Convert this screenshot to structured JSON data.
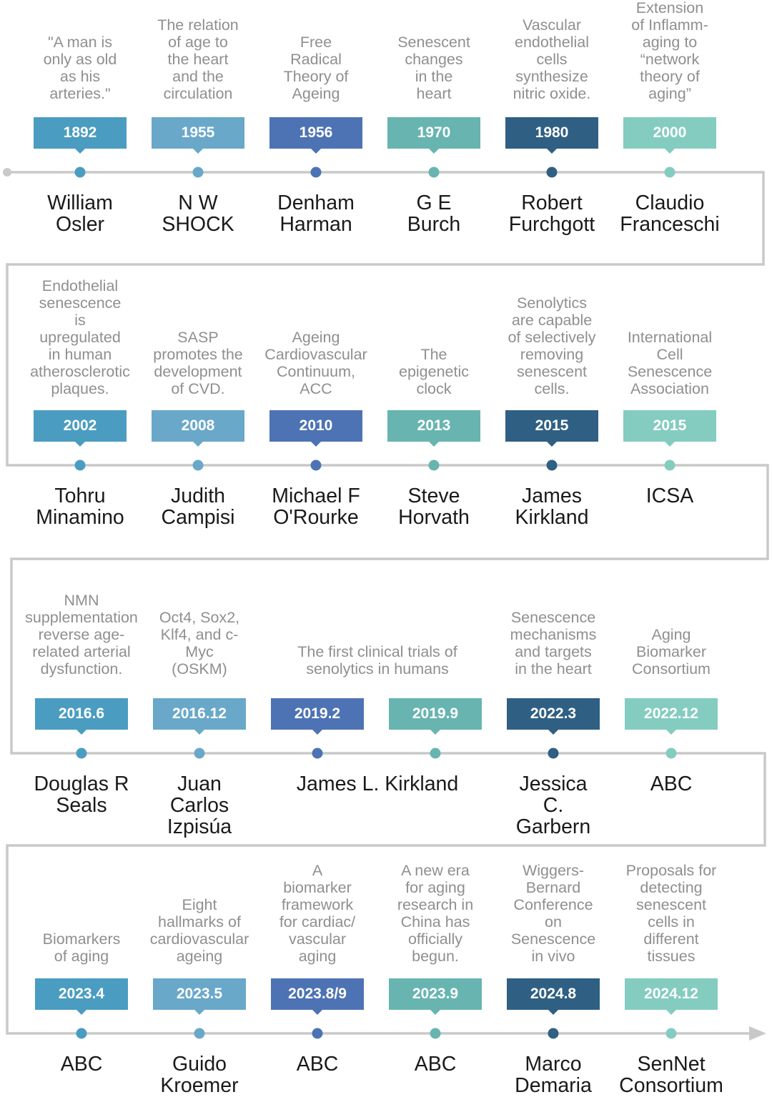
{
  "palette": {
    "c1": "#4a9dc0",
    "c2": "#6aa8ca",
    "c3": "#4e73b5",
    "c4": "#68b4b1",
    "c5": "#2f5f82",
    "c6": "#84cbc0",
    "path": "#c9c9c9"
  },
  "rows": [
    {
      "events": [
        {
          "year": "1892",
          "desc": "\"A man is\nonly as old\nas his\narteries.\"",
          "person": "William\nOsler",
          "color": "c1"
        },
        {
          "year": "1955",
          "desc": "The relation\nof age to\nthe heart\nand the\ncirculation",
          "person": "N W\nSHOCK",
          "color": "c2"
        },
        {
          "year": "1956",
          "desc": "Free\nRadical\nTheory of\nAgeing",
          "person": "Denham\nHarman",
          "color": "c3"
        },
        {
          "year": "1970",
          "desc": "Senescent\nchanges\nin the\nheart",
          "person": "G E\nBurch",
          "color": "c4"
        },
        {
          "year": "1980",
          "desc": "Vascular\nendothelial\ncells\nsynthesize\nnitric oxide.",
          "person": "Robert\nFurchgott",
          "color": "c5"
        },
        {
          "year": "2000",
          "desc": "Extension\nof Inflamm-\naging to\n“network\ntheory of\naging”",
          "person": "Claudio\nFranceschi",
          "color": "c6"
        }
      ]
    },
    {
      "events": [
        {
          "year": "2002",
          "desc": "Endothelial\nsenescence\nis\nupregulated\nin human\natherosclerotic\nplaques.",
          "person": "Tohru\nMinamino",
          "color": "c1"
        },
        {
          "year": "2008",
          "desc": "SASP\npromotes the\ndevelopment\nof CVD.",
          "person": "Judith\nCampisi",
          "color": "c2"
        },
        {
          "year": "2010",
          "desc": "Ageing\nCardiovascular\nContinuum,\nACC",
          "person": "Michael F\nO'Rourke",
          "color": "c3"
        },
        {
          "year": "2013",
          "desc": "The\nepigenetic\nclock",
          "person": "Steve\nHorvath",
          "color": "c4"
        },
        {
          "year": "2015",
          "desc": "Senolytics\nare capable\nof selectively\nremoving\nsenescent\ncells.",
          "person": "James\nKirkland",
          "color": "c5"
        },
        {
          "year": "2015",
          "desc": "International\nCell\nSenescence\nAssociation",
          "person": "ICSA",
          "color": "c6"
        }
      ]
    },
    {
      "events": [
        {
          "year": "2016.6",
          "desc": "NMN\nsupplementation\nreverse age-\nrelated arterial\ndysfunction.",
          "person": "Douglas R\nSeals",
          "color": "c1"
        },
        {
          "year": "2016.12",
          "desc": "Oct4, Sox2,\nKlf4, and c-\nMyc\n(OSKM)",
          "person": "Juan\nCarlos\nIzpisúa",
          "color": "c2"
        },
        {
          "year": "2019.2",
          "desc": "",
          "person": "",
          "color": "c3"
        },
        {
          "year": "2019.9",
          "desc": "",
          "person": "",
          "color": "c4"
        },
        {
          "year": "2022.3",
          "desc": "Senescence\nmechanisms\nand targets\nin the heart",
          "person": "Jessica\nC.\nGarbern",
          "color": "c5"
        },
        {
          "year": "2022.12",
          "desc": "Aging\nBiomarker\nConsortium",
          "person": "ABC",
          "color": "c6"
        }
      ],
      "merged": {
        "desc": "The first clinical trials of\nsenolytics in humans",
        "person": "James L. Kirkland"
      }
    },
    {
      "events": [
        {
          "year": "2023.4",
          "desc": "Biomarkers\nof aging",
          "person": "ABC",
          "color": "c1"
        },
        {
          "year": "2023.5",
          "desc": "Eight\nhallmarks of\ncardiovascular\nageing",
          "person": "Guido\nKroemer",
          "color": "c2"
        },
        {
          "year": "2023.8/9",
          "desc": "A\nbiomarker\nframework\nfor cardiac/\nvascular\naging",
          "person": "ABC",
          "color": "c3"
        },
        {
          "year": "2023.9",
          "desc": "A new era\nfor aging\nresearch in\nChina has\nofficially\nbegun.",
          "person": "ABC",
          "color": "c4"
        },
        {
          "year": "2024.8",
          "desc": "Wiggers-\nBernard\nConference\non\nSenescence\nin vivo",
          "person": "Marco\nDemaria",
          "color": "c5"
        },
        {
          "year": "2024.12",
          "desc": "Proposals for\ndetecting\nsenescent\ncells in\ndifferent\ntissues",
          "person": "SenNet\nConsortium",
          "color": "c6"
        }
      ]
    }
  ]
}
